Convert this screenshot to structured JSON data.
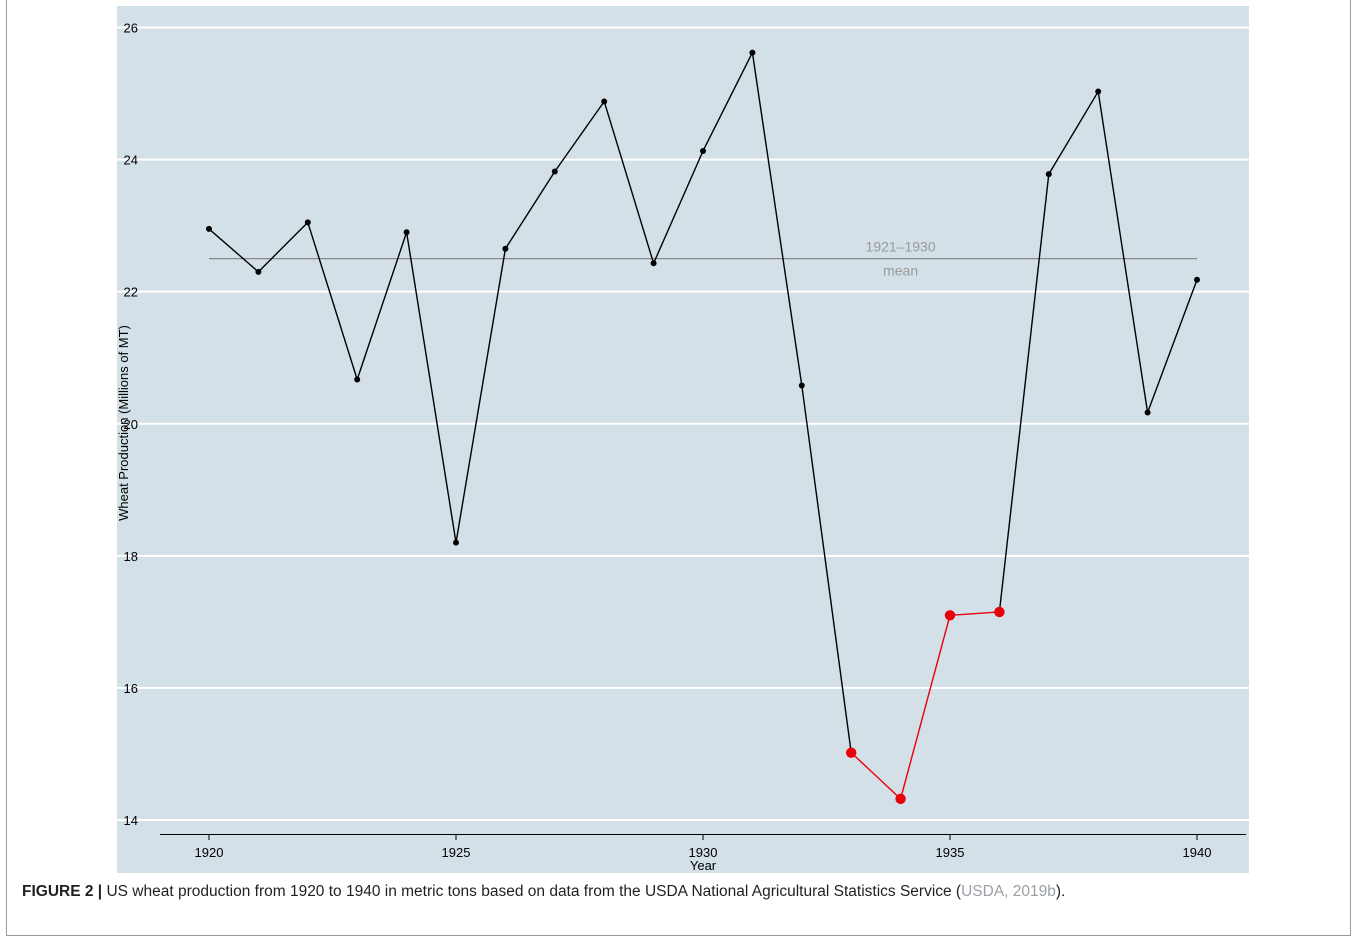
{
  "chart_data": {
    "type": "line",
    "xlabel": "Year",
    "ylabel": "Wheat Production (Millions of MT)",
    "xlim": [
      1919,
      1941
    ],
    "ylim": [
      13.75,
      26.1
    ],
    "x_ticks": [
      1920,
      1925,
      1930,
      1935,
      1940
    ],
    "y_ticks": [
      14,
      16,
      18,
      20,
      22,
      24,
      26
    ],
    "grid": "horizontal",
    "background_color": "#d3e0e8",
    "line_color": "#000000",
    "highlight_color": "#e8000b",
    "mean_color": "#8a8a8a",
    "series": [
      {
        "x": [
          1920,
          1921,
          1922,
          1923,
          1924,
          1925,
          1926,
          1927,
          1928,
          1929,
          1930,
          1931,
          1932,
          1933,
          1934,
          1935,
          1936,
          1937,
          1938,
          1939,
          1940
        ],
        "values": [
          22.95,
          22.3,
          23.05,
          20.67,
          22.9,
          18.2,
          22.65,
          23.82,
          24.88,
          22.43,
          24.13,
          25.62,
          20.58,
          15.02,
          14.32,
          17.1,
          17.15,
          23.78,
          25.03,
          20.17,
          22.18
        ],
        "highlighted_years": [
          1933,
          1934,
          1935,
          1936
        ]
      }
    ],
    "reference_line": {
      "value": 22.5,
      "x_range": [
        1920,
        1940
      ],
      "label_line1": "1921–1930",
      "label_line2": "mean",
      "label_x": 1934
    }
  },
  "caption": {
    "label": "FIGURE 2 |",
    "text": " US wheat production from 1920 to 1940 in metric tons based on data from the USDA National Agricultural Statistics Service (",
    "citation": "USDA, 2019b",
    "end": ")."
  }
}
